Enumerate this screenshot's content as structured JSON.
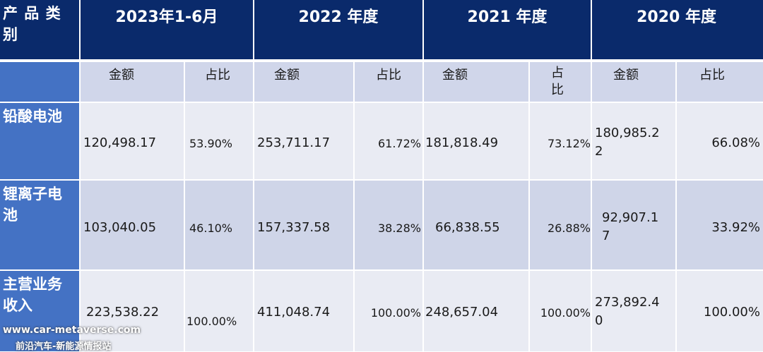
{
  "header": {
    "category": "产 品 类 别",
    "periods": [
      "2023年1-6月",
      "2022 年度",
      "2021 年度",
      "2020 年度"
    ]
  },
  "subheader": {
    "amount": "金额",
    "ratio": "占比",
    "ratio_wrapped": "占\n比"
  },
  "rows": [
    {
      "label": "铅酸电池",
      "cells": [
        "120,498.17",
        "53.90%",
        "253,711.17",
        "61.72%",
        "181,818.49",
        "73.12%",
        "180,985.2\n2",
        "66.08%"
      ]
    },
    {
      "label": "锂离子电池",
      "cells": [
        "103,040.05",
        "46.10%",
        "157,337.58",
        "38.28%",
        "66,838.55",
        "26.88%",
        "92,907.1\n7",
        "33.92%"
      ]
    },
    {
      "label": "主营业务收入",
      "cells": [
        "223,538.22",
        "100.00%",
        "411,048.74",
        "100.00%",
        "248,657.04",
        "100.00%",
        "273,892.4\n0",
        "100.00%"
      ]
    }
  ],
  "watermark": {
    "url": "www.car-metaverse.com",
    "name": "前沿汽车-新能源情报站"
  }
}
